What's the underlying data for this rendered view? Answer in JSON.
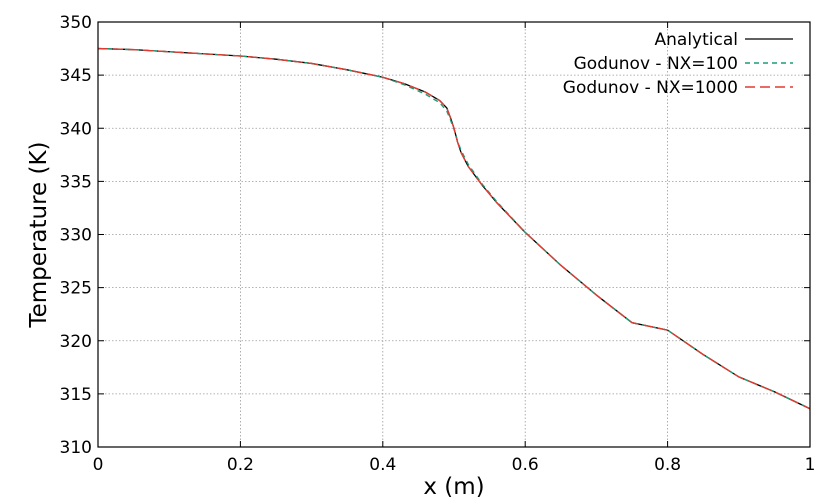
{
  "chart_data": {
    "type": "line",
    "title": "",
    "xlabel": "x (m)",
    "ylabel": "Temperature (K)",
    "xlim": [
      0,
      1
    ],
    "ylim": [
      310,
      350
    ],
    "xticks": [
      0,
      0.2,
      0.4,
      0.6,
      0.8,
      1
    ],
    "xtick_labels": [
      "0",
      "0.2",
      "0.4",
      "0.6",
      "0.8",
      "1"
    ],
    "yticks": [
      310,
      315,
      320,
      325,
      330,
      335,
      340,
      345,
      350
    ],
    "ytick_labels": [
      "310",
      "315",
      "320",
      "325",
      "330",
      "335",
      "340",
      "345",
      "350"
    ],
    "grid": true,
    "legend_position": "top-right",
    "series": [
      {
        "name": "Analytical",
        "color": "#000000",
        "style": "solid",
        "x": [
          0,
          0.05,
          0.1,
          0.15,
          0.2,
          0.25,
          0.3,
          0.35,
          0.4,
          0.43,
          0.46,
          0.48,
          0.49,
          0.495,
          0.5,
          0.505,
          0.51,
          0.52,
          0.54,
          0.56,
          0.6,
          0.65,
          0.7,
          0.75,
          0.8,
          0.85,
          0.9,
          0.95,
          1.0
        ],
        "y": [
          347.5,
          347.4,
          347.2,
          347.0,
          346.8,
          346.5,
          346.1,
          345.5,
          344.8,
          344.2,
          343.4,
          342.6,
          341.9,
          341.0,
          340.0,
          338.7,
          337.7,
          336.4,
          334.6,
          333.0,
          330.2,
          327.1,
          324.3,
          321.7,
          321.0,
          318.7,
          316.6,
          315.2,
          313.6
        ]
      },
      {
        "name": "Godunov - NX=100",
        "color": "#1a9e77",
        "style": "dashed",
        "x": [
          0,
          0.05,
          0.1,
          0.15,
          0.2,
          0.25,
          0.3,
          0.35,
          0.4,
          0.43,
          0.46,
          0.48,
          0.49,
          0.495,
          0.5,
          0.505,
          0.51,
          0.52,
          0.54,
          0.56,
          0.6,
          0.65,
          0.7,
          0.75,
          0.8,
          0.85,
          0.9,
          0.95,
          1.0
        ],
        "y": [
          347.5,
          347.4,
          347.2,
          347.0,
          346.8,
          346.5,
          346.1,
          345.5,
          344.8,
          344.1,
          343.2,
          342.4,
          341.6,
          340.8,
          339.9,
          338.8,
          337.9,
          336.6,
          334.7,
          333.1,
          330.2,
          327.1,
          324.3,
          321.7,
          321.0,
          318.7,
          316.6,
          315.2,
          313.6
        ]
      },
      {
        "name": "Godunov - NX=1000",
        "color": "#e03c31",
        "style": "dashed",
        "x": [
          0,
          0.05,
          0.1,
          0.15,
          0.2,
          0.25,
          0.3,
          0.35,
          0.4,
          0.43,
          0.46,
          0.48,
          0.49,
          0.495,
          0.5,
          0.505,
          0.51,
          0.52,
          0.54,
          0.56,
          0.6,
          0.65,
          0.7,
          0.75,
          0.8,
          0.85,
          0.9,
          0.95,
          1.0
        ],
        "y": [
          347.5,
          347.4,
          347.2,
          347.0,
          346.8,
          346.5,
          346.1,
          345.5,
          344.8,
          344.2,
          343.4,
          342.6,
          341.9,
          341.0,
          340.0,
          338.7,
          337.7,
          336.4,
          334.6,
          333.0,
          330.2,
          327.1,
          324.3,
          321.7,
          321.0,
          318.7,
          316.6,
          315.2,
          313.6
        ]
      }
    ]
  }
}
